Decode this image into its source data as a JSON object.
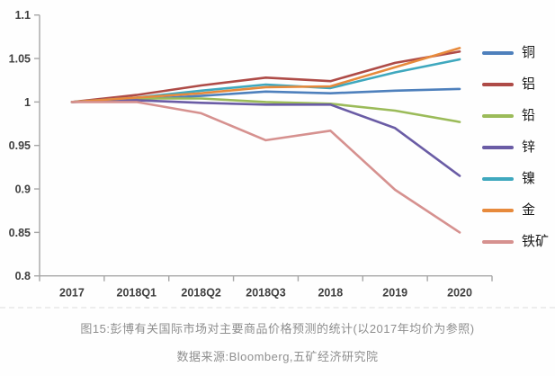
{
  "figure": {
    "caption": "图15:彭博有关国际市场对主要商品价格预测的统计(以2017年均价为参照)",
    "source": "数据来源:Bloomberg,五矿经济研究院"
  },
  "chart_data": {
    "type": "line",
    "title": "",
    "xlabel": "",
    "ylabel": "",
    "categories": [
      "2017",
      "2018Q1",
      "2018Q2",
      "2018Q3",
      "2018",
      "2019",
      "2020"
    ],
    "series": [
      {
        "name": "铜",
        "color": "#4E80BC",
        "values": [
          1.0,
          1.003,
          1.007,
          1.012,
          1.01,
          1.013,
          1.015
        ]
      },
      {
        "name": "铝",
        "color": "#AE4B47",
        "values": [
          1.0,
          1.008,
          1.019,
          1.028,
          1.024,
          1.045,
          1.058
        ]
      },
      {
        "name": "铅",
        "color": "#9BBB59",
        "values": [
          1.0,
          1.004,
          1.004,
          1.0,
          0.998,
          0.99,
          0.977
        ]
      },
      {
        "name": "锌",
        "color": "#6A5CA5",
        "values": [
          1.0,
          1.002,
          0.999,
          0.997,
          0.997,
          0.97,
          0.915
        ]
      },
      {
        "name": "镍",
        "color": "#3FA8BE",
        "values": [
          1.0,
          1.005,
          1.013,
          1.02,
          1.016,
          1.034,
          1.049
        ]
      },
      {
        "name": "金",
        "color": "#E78A3C",
        "values": [
          1.0,
          1.005,
          1.01,
          1.017,
          1.018,
          1.04,
          1.062
        ]
      },
      {
        "name": "铁矿",
        "color": "#D6918F",
        "values": [
          1.0,
          1.0,
          0.987,
          0.956,
          0.967,
          0.899,
          0.85
        ]
      }
    ],
    "ylim": [
      0.8,
      1.1
    ],
    "ytick_step": 0.05,
    "ytick_labels": [
      "1.1",
      "1.05",
      "1",
      "0.95",
      "0.9",
      "0.85",
      "0.8"
    ],
    "grid": false,
    "legend_position": "right",
    "axis_color": "#A6A6A6",
    "tick_label_color": "#3F3F3F",
    "baseline_value": 1.0
  }
}
